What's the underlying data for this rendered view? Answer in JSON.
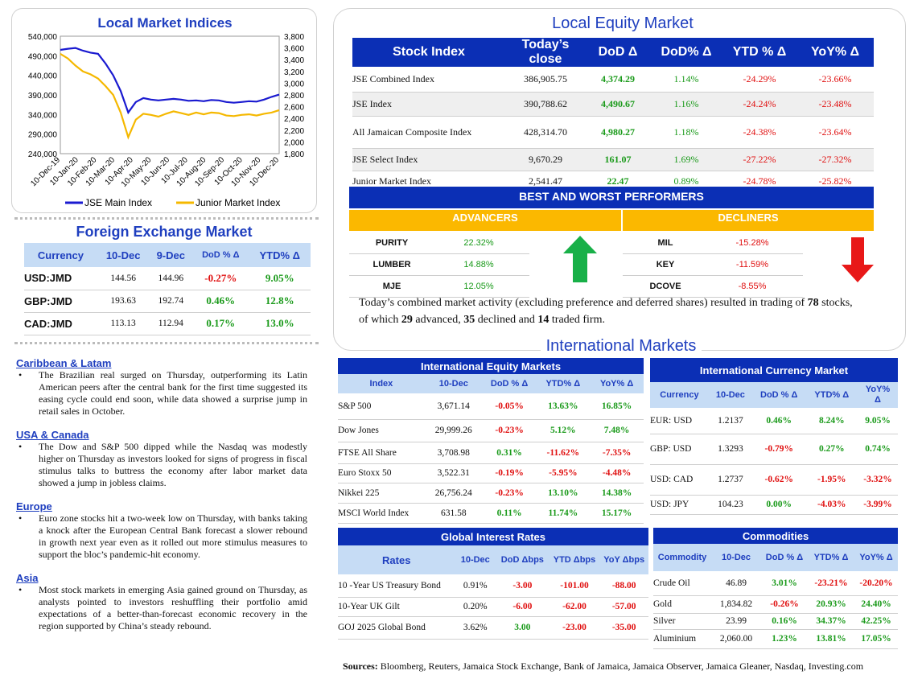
{
  "chart_data": {
    "type": "line",
    "title": "Local Market Indices",
    "y_left": {
      "ticks": [
        "540,000",
        "490,000",
        "440,000",
        "390,000",
        "340,000",
        "290,000",
        "240,000"
      ],
      "range": [
        240000,
        540000
      ]
    },
    "y_right": {
      "ticks": [
        "3,800",
        "3,600",
        "3,400",
        "3,200",
        "3,000",
        "2,800",
        "2,600",
        "2,400",
        "2,200",
        "2,000",
        "1,800"
      ],
      "range": [
        1800,
        3800
      ]
    },
    "x_ticks": [
      "10-Dec-19",
      "10-Jan-20",
      "10-Feb-20",
      "10-Mar-20",
      "10-Apr-20",
      "10-May-20",
      "10-Jun-20",
      "10-Jul-20",
      "10-Aug-20",
      "10-Sep-20",
      "10-Oct-20",
      "10-Nov-20",
      "10-Dec-20"
    ],
    "series": [
      {
        "name": "JSE Main Index",
        "color": "#1a1ad0",
        "axis": "left",
        "values": [
          505000,
          508000,
          510000,
          503000,
          498000,
          495000,
          470000,
          440000,
          400000,
          345000,
          372000,
          382000,
          378000,
          376000,
          378000,
          380000,
          378000,
          375000,
          376000,
          374000,
          377000,
          376000,
          372000,
          370000,
          372000,
          374000,
          373000,
          378000,
          385000,
          390788
        ]
      },
      {
        "name": "Junior Market Index",
        "color": "#f5b800",
        "axis": "right",
        "values": [
          3500,
          3420,
          3300,
          3200,
          3150,
          3080,
          2950,
          2800,
          2500,
          2080,
          2380,
          2480,
          2460,
          2430,
          2480,
          2520,
          2490,
          2460,
          2500,
          2470,
          2500,
          2490,
          2450,
          2440,
          2460,
          2470,
          2450,
          2480,
          2500,
          2541
        ]
      }
    ]
  },
  "local_equity": {
    "title": "Local Equity Market",
    "headers": [
      "Stock Index",
      "Today’s close",
      "DoD  Δ",
      "DoD% Δ",
      "YTD % Δ",
      "YoY% Δ"
    ],
    "rows": [
      {
        "name": "JSE Combined Index",
        "close": "386,905.75",
        "dod": "4,374.29",
        "dodp": "1.14%",
        "ytd": "-24.29%",
        "yoy": "-23.66%"
      },
      {
        "name": "JSE Index",
        "close": "390,788.62",
        "dod": "4,490.67",
        "dodp": "1.16%",
        "ytd": "-24.24%",
        "yoy": "-23.48%"
      },
      {
        "name": "All Jamaican Composite Index",
        "close": "428,314.70",
        "dod": "4,980.27",
        "dodp": "1.18%",
        "ytd": "-24.38%",
        "yoy": "-23.64%"
      },
      {
        "name": "JSE Select Index",
        "close": "9,670.29",
        "dod": "161.07",
        "dodp": "1.69%",
        "ytd": "-27.22%",
        "yoy": "-27.32%"
      },
      {
        "name": "Junior Market Index",
        "close": "2,541.47",
        "dod": "22.47",
        "dodp": "0.89%",
        "ytd": "-24.78%",
        "yoy": "-25.82%"
      }
    ]
  },
  "performers": {
    "title": "BEST AND WORST PERFORMERS",
    "adv_label": "ADVANCERS",
    "dec_label": "DECLINERS",
    "advancers": [
      {
        "n": "PURITY",
        "v": "22.32%"
      },
      {
        "n": "LUMBER",
        "v": "14.88%"
      },
      {
        "n": "MJE",
        "v": "12.05%"
      }
    ],
    "decliners": [
      {
        "n": "MIL",
        "v": "-15.28%"
      },
      {
        "n": "KEY",
        "v": "-11.59%"
      },
      {
        "n": "DCOVE",
        "v": "-8.55%"
      }
    ],
    "summary_a": "Today’s combined market activity (excluding preference and deferred shares) resulted in trading of ",
    "traded": "78",
    "summary_b": " stocks, of which ",
    "advanced": "29",
    "summary_c": " advanced, ",
    "declined": "35",
    "summary_d": " declined and ",
    "firm": "14",
    "summary_e": " traded firm."
  },
  "fx": {
    "title": "Foreign Exchange Market",
    "headers": [
      "Currency",
      "10-Dec",
      "9-Dec",
      "DoD % Δ",
      "YTD% Δ"
    ],
    "rows": [
      {
        "c": "USD:JMD",
        "a": "144.56",
        "b": "144.96",
        "d": "-0.27%",
        "y": "9.05%"
      },
      {
        "c": "GBP:JMD",
        "a": "193.63",
        "b": "192.74",
        "d": "0.46%",
        "y": "12.8%"
      },
      {
        "c": "CAD:JMD",
        "a": "113.13",
        "b": "112.94",
        "d": "0.17%",
        "y": "13.0%"
      }
    ]
  },
  "news": [
    {
      "h": "Caribbean & Latam",
      "t": "The Brazilian real surged on Thursday, outperforming its Latin American peers after the central bank for the first time suggested its easing cycle could end soon, while data showed a surprise jump in retail sales in October."
    },
    {
      "h": "USA & Canada",
      "t": "The Dow and S&P 500 dipped while the Nasdaq was modestly higher on Thursday as investors looked for signs of progress in fiscal stimulus talks to buttress the economy after labor market data showed a jump in jobless claims."
    },
    {
      "h": "Europe",
      "t": "Euro zone stocks hit a two-week low on Thursday, with banks taking a knock after the European Central Bank forecast a slower rebound in growth next year even as it rolled out more stimulus measures to support the bloc’s pandemic-hit economy."
    },
    {
      "h": "Asia",
      "t": "Most stock markets in emerging Asia gained ground on Thursday, as analysts pointed to investors reshuffling their portfolio amid expectations of a better-than-forecast economic recovery in the region supported by China’s steady rebound."
    }
  ],
  "intl_title": "International Markets",
  "intl_equity": {
    "title": "International Equity Markets",
    "headers": [
      "Index",
      "10-Dec",
      "DoD % Δ",
      "YTD% Δ",
      "YoY% Δ"
    ],
    "rows": [
      {
        "n": "S&P 500",
        "v": "3,671.14",
        "d": "-0.05%",
        "y": "13.63%",
        "yy": "16.85%"
      },
      {
        "n": "Dow Jones",
        "v": "29,999.26",
        "d": "-0.23%",
        "y": "5.12%",
        "yy": "7.48%"
      },
      {
        "n": "FTSE All Share",
        "v": "3,708.98",
        "d": "0.31%",
        "y": "-11.62%",
        "yy": "-7.35%"
      },
      {
        "n": "Euro Stoxx 50",
        "v": "3,522.31",
        "d": "-0.19%",
        "y": "-5.95%",
        "yy": "-4.48%"
      },
      {
        "n": "Nikkei 225",
        "v": "26,756.24",
        "d": "-0.23%",
        "y": "13.10%",
        "yy": "14.38%"
      },
      {
        "n": "MSCI World Index",
        "v": "631.58",
        "d": "0.11%",
        "y": "11.74%",
        "yy": "15.17%"
      }
    ]
  },
  "intl_currency": {
    "title": "International Currency Market",
    "headers": [
      "Currency",
      "10-Dec",
      "DoD % Δ",
      "YTD% Δ",
      "YoY%",
      "Δ"
    ],
    "rows": [
      {
        "c": "EUR: USD",
        "v": "1.2137",
        "d": "0.46%",
        "y": "8.24%",
        "yy": "9.05%"
      },
      {
        "c": "GBP: USD",
        "v": "1.3293",
        "d": "-0.79%",
        "y": "0.27%",
        "yy": "0.74%"
      },
      {
        "c": "USD: CAD",
        "v": "1.2737",
        "d": "-0.62%",
        "y": "-1.95%",
        "yy": "-3.32%"
      },
      {
        "c": "USD: JPY",
        "v": "104.23",
        "d": "0.00%",
        "y": "-4.03%",
        "yy": "-3.99%"
      }
    ]
  },
  "rates": {
    "title": "Global Interest Rates",
    "headers": [
      "Rates",
      "10-Dec",
      "DoD Δbps",
      "YTD Δbps",
      "YoY Δbps"
    ],
    "rows": [
      {
        "n": "10 -Year US Treasury Bond",
        "v": "0.91%",
        "d": "-3.00",
        "y": "-101.00",
        "yy": "-88.00"
      },
      {
        "n": "10-Year UK Gilt",
        "v": "0.20%",
        "d": "-6.00",
        "y": "-62.00",
        "yy": "-57.00"
      },
      {
        "n": "GOJ 2025 Global Bond",
        "v": "3.62%",
        "d": "3.00",
        "y": "-23.00",
        "yy": "-35.00"
      }
    ]
  },
  "commodities": {
    "title": "Commodities",
    "headers": [
      "Commodity",
      "10-Dec",
      "DoD % Δ",
      "YTD% Δ",
      "YoY% Δ"
    ],
    "rows": [
      {
        "n": "Crude Oil",
        "v": "46.89",
        "d": "3.01%",
        "y": "-23.21%",
        "yy": "-20.20%"
      },
      {
        "n": "Gold",
        "v": "1,834.82",
        "d": "-0.26%",
        "y": "20.93%",
        "yy": "24.40%"
      },
      {
        "n": "Silver",
        "v": "23.99",
        "d": "0.16%",
        "y": "34.37%",
        "yy": "42.25%"
      },
      {
        "n": "Aluminium",
        "v": "2,060.00",
        "d": "1.23%",
        "y": "13.81%",
        "yy": "17.05%"
      }
    ]
  },
  "sources_label": "Sources:",
  "sources": " Bloomberg, Reuters, Jamaica Stock Exchange, Bank of Jamaica, Jamaica Observer, Jamaica Gleaner, Nasdaq, Investing.com"
}
